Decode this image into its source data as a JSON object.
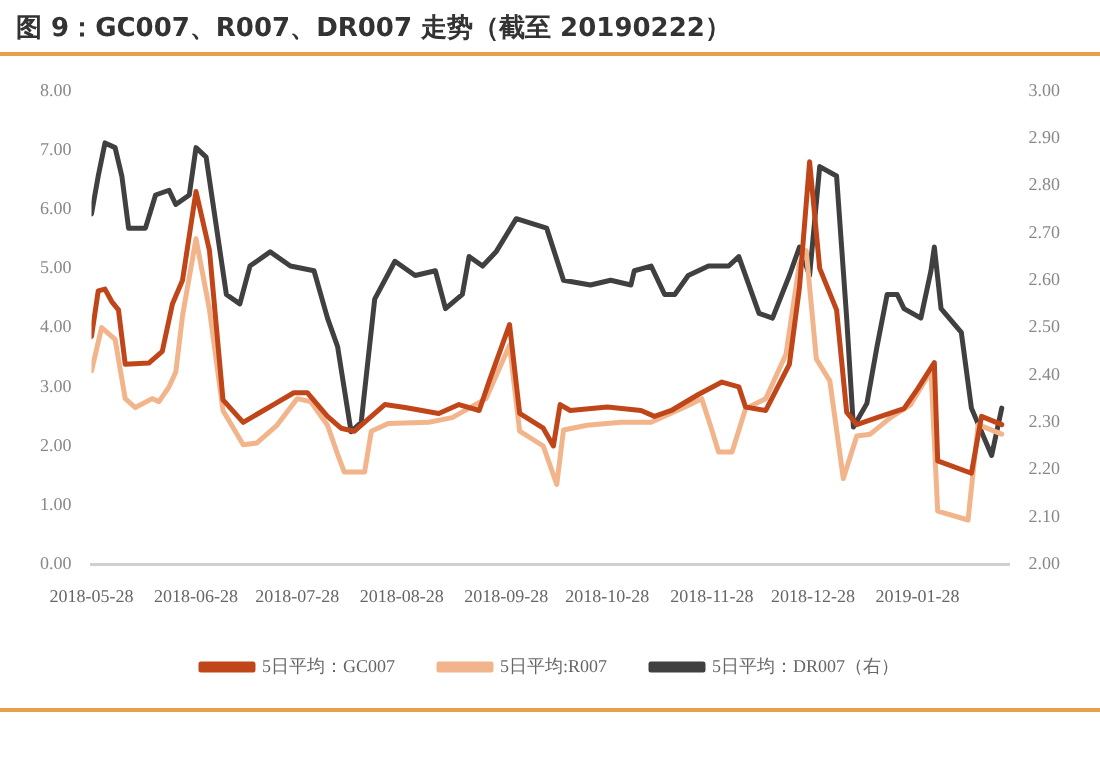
{
  "chart_data": {
    "type": "line",
    "title": "图 9：GC007、R007、DR007 走势（截至 20190222）",
    "series": [
      {
        "name": "5日平均：GC007",
        "color": "#c0461a",
        "x": [
          "2018-05-28",
          "2018-05-30",
          "2018-06-01",
          "2018-06-03",
          "2018-06-05",
          "2018-06-07",
          "2018-06-14",
          "2018-06-18",
          "2018-06-21",
          "2018-06-24",
          "2018-06-28",
          "2018-07-02",
          "2018-07-06",
          "2018-07-12",
          "2018-07-18",
          "2018-07-21",
          "2018-07-27",
          "2018-07-31",
          "2018-08-06",
          "2018-08-10",
          "2018-08-14",
          "2018-08-19",
          "2018-08-23",
          "2018-08-29",
          "2018-09-08",
          "2018-09-14",
          "2018-09-20",
          "2018-09-23",
          "2018-09-29",
          "2018-10-02",
          "2018-10-09",
          "2018-10-12",
          "2018-10-14",
          "2018-10-17",
          "2018-10-28",
          "2018-11-07",
          "2018-11-11",
          "2018-11-16",
          "2018-11-24",
          "2018-12-01",
          "2018-12-06",
          "2018-12-08",
          "2018-12-14",
          "2018-12-21",
          "2018-12-24",
          "2018-12-27",
          "2018-12-30",
          "2019-01-04",
          "2019-01-07",
          "2019-01-10",
          "2019-01-16",
          "2019-01-24",
          "2019-01-28",
          "2019-02-02",
          "2019-02-03",
          "2019-02-13",
          "2019-02-16",
          "2019-02-22"
        ],
        "values": [
          3.85,
          4.62,
          4.65,
          4.44,
          4.3,
          3.38,
          3.4,
          3.6,
          4.4,
          4.8,
          6.3,
          5.3,
          2.78,
          2.4,
          2.6,
          2.7,
          2.9,
          2.9,
          2.5,
          2.3,
          2.25,
          2.5,
          2.7,
          2.65,
          2.55,
          2.7,
          2.6,
          3.1,
          4.05,
          2.55,
          2.3,
          2.0,
          2.7,
          2.6,
          2.66,
          2.6,
          2.5,
          2.6,
          2.87,
          3.08,
          3.0,
          2.66,
          2.6,
          3.38,
          4.68,
          6.8,
          5.0,
          4.3,
          2.57,
          2.36,
          2.48,
          2.63,
          2.96,
          3.41,
          1.75,
          1.54,
          2.5,
          2.36
        ]
      },
      {
        "name": "5日平均:R007",
        "color": "#f2b48a",
        "x": [
          "2018-05-28",
          "2018-05-31",
          "2018-06-04",
          "2018-06-07",
          "2018-06-10",
          "2018-06-15",
          "2018-06-17",
          "2018-06-20",
          "2018-06-22",
          "2018-06-24",
          "2018-06-28",
          "2018-07-02",
          "2018-07-06",
          "2018-07-12",
          "2018-07-16",
          "2018-07-22",
          "2018-07-28",
          "2018-08-01",
          "2018-08-06",
          "2018-08-09",
          "2018-08-11",
          "2018-08-17",
          "2018-08-19",
          "2018-08-24",
          "2018-09-05",
          "2018-09-12",
          "2018-09-22",
          "2018-09-29",
          "2018-10-02",
          "2018-10-09",
          "2018-10-13",
          "2018-10-15",
          "2018-10-22",
          "2018-11-01",
          "2018-11-10",
          "2018-11-20",
          "2018-11-25",
          "2018-11-28",
          "2018-11-30",
          "2018-12-04",
          "2018-12-08",
          "2018-12-14",
          "2018-12-20",
          "2018-12-24",
          "2018-12-26",
          "2018-12-29",
          "2019-01-02",
          "2019-01-06",
          "2019-01-10",
          "2019-01-14",
          "2019-01-20",
          "2019-01-26",
          "2019-02-01",
          "2019-02-03",
          "2019-02-12",
          "2019-02-15",
          "2019-02-22"
        ],
        "values": [
          3.27,
          4.0,
          3.8,
          2.8,
          2.65,
          2.8,
          2.75,
          3.0,
          3.25,
          4.2,
          5.5,
          4.3,
          2.6,
          2.02,
          2.05,
          2.35,
          2.8,
          2.75,
          2.35,
          1.86,
          1.56,
          1.56,
          2.25,
          2.38,
          2.4,
          2.48,
          2.8,
          3.7,
          2.25,
          2.0,
          1.35,
          2.27,
          2.35,
          2.4,
          2.4,
          2.66,
          2.8,
          2.27,
          1.9,
          1.9,
          2.63,
          2.8,
          3.55,
          5.08,
          5.3,
          3.47,
          3.1,
          1.45,
          2.17,
          2.2,
          2.48,
          2.7,
          3.27,
          0.9,
          0.75,
          2.36,
          2.2
        ]
      },
      {
        "name": "5日平均：DR007（右）",
        "color": "#404040",
        "axis": "y2",
        "x": [
          "2018-05-28",
          "2018-05-30",
          "2018-06-01",
          "2018-06-04",
          "2018-06-06",
          "2018-06-08",
          "2018-06-13",
          "2018-06-16",
          "2018-06-20",
          "2018-06-22",
          "2018-06-26",
          "2018-06-28",
          "2018-07-01",
          "2018-07-07",
          "2018-07-11",
          "2018-07-14",
          "2018-07-20",
          "2018-07-26",
          "2018-08-02",
          "2018-08-06",
          "2018-08-09",
          "2018-08-13",
          "2018-08-16",
          "2018-08-20",
          "2018-08-26",
          "2018-09-01",
          "2018-09-07",
          "2018-09-10",
          "2018-09-15",
          "2018-09-17",
          "2018-09-21",
          "2018-09-25",
          "2018-10-01",
          "2018-10-10",
          "2018-10-15",
          "2018-10-23",
          "2018-10-29",
          "2018-11-04",
          "2018-11-05",
          "2018-11-10",
          "2018-11-14",
          "2018-11-17",
          "2018-11-21",
          "2018-11-27",
          "2018-12-03",
          "2018-12-06",
          "2018-12-12",
          "2018-12-16",
          "2018-12-21",
          "2018-12-24",
          "2018-12-27",
          "2018-12-30",
          "2019-01-04",
          "2019-01-07",
          "2019-01-09",
          "2019-01-13",
          "2019-01-16",
          "2019-01-19",
          "2019-01-22",
          "2019-01-24",
          "2019-01-29",
          "2019-02-01",
          "2019-02-02",
          "2019-02-04",
          "2019-02-10",
          "2019-02-13",
          "2019-02-19",
          "2019-02-22"
        ],
        "values": [
          2.74,
          2.82,
          2.89,
          2.88,
          2.82,
          2.71,
          2.71,
          2.78,
          2.79,
          2.76,
          2.78,
          2.88,
          2.86,
          2.57,
          2.55,
          2.63,
          2.66,
          2.63,
          2.62,
          2.52,
          2.46,
          2.28,
          2.3,
          2.56,
          2.64,
          2.61,
          2.62,
          2.54,
          2.57,
          2.65,
          2.63,
          2.66,
          2.73,
          2.71,
          2.6,
          2.59,
          2.6,
          2.59,
          2.62,
          2.63,
          2.57,
          2.57,
          2.61,
          2.63,
          2.63,
          2.65,
          2.53,
          2.52,
          2.61,
          2.67,
          2.61,
          2.84,
          2.82,
          2.52,
          2.29,
          2.34,
          2.46,
          2.57,
          2.57,
          2.54,
          2.52,
          2.62,
          2.67,
          2.54,
          2.49,
          2.33,
          2.23,
          2.33
        ]
      }
    ],
    "xlim": [
      "2018-05-28",
      "2019-02-24"
    ],
    "xticks": [
      {
        "value": "2018-05-28",
        "label": "2018-05-28"
      },
      {
        "value": "2018-06-28",
        "label": "2018-06-28"
      },
      {
        "value": "2018-07-28",
        "label": "2018-07-28"
      },
      {
        "value": "2018-08-28",
        "label": "2018-08-28"
      },
      {
        "value": "2018-09-28",
        "label": "2018-09-28"
      },
      {
        "value": "2018-10-28",
        "label": "2018-10-28"
      },
      {
        "value": "2018-11-28",
        "label": "2018-11-28"
      },
      {
        "value": "2018-12-28",
        "label": "2018-12-28"
      },
      {
        "value": "2019-01-28",
        "label": "2019-01-28"
      }
    ],
    "ylim": [
      0,
      8
    ],
    "yticks": [
      {
        "value": 0,
        "label": "0.00"
      },
      {
        "value": 1,
        "label": "1.00"
      },
      {
        "value": 2,
        "label": "2.00"
      },
      {
        "value": 3,
        "label": "3.00"
      },
      {
        "value": 4,
        "label": "4.00"
      },
      {
        "value": 5,
        "label": "5.00"
      },
      {
        "value": 6,
        "label": "6.00"
      },
      {
        "value": 7,
        "label": "7.00"
      },
      {
        "value": 8,
        "label": "8.00"
      }
    ],
    "y2lim": [
      2,
      3
    ],
    "y2ticks": [
      {
        "value": 2,
        "label": "2.00"
      },
      {
        "value": 2.1,
        "label": "2.10"
      },
      {
        "value": 2.2,
        "label": "2.20"
      },
      {
        "value": 2.3,
        "label": "2.30"
      },
      {
        "value": 2.4,
        "label": "2.40"
      },
      {
        "value": 2.5,
        "label": "2.50"
      },
      {
        "value": 2.6,
        "label": "2.60"
      },
      {
        "value": 2.7,
        "label": "2.70"
      },
      {
        "value": 2.8,
        "label": "2.80"
      },
      {
        "value": 2.9,
        "label": "2.90"
      },
      {
        "value": 3,
        "label": "3.00"
      }
    ],
    "grid": false,
    "legend": "bottom",
    "marker": "none",
    "line_style": "solid"
  }
}
